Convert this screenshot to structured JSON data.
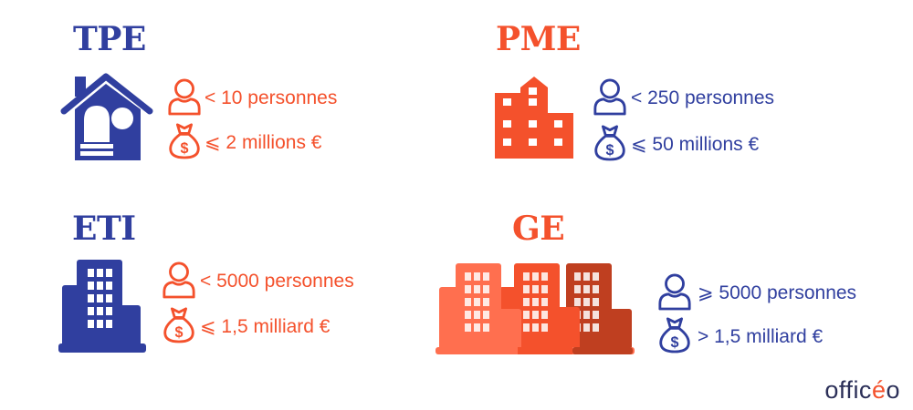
{
  "colors": {
    "blue": "#303f9f",
    "orange": "#f4512c",
    "dark_orange": "#bf3f20",
    "light_orange": "#ff6f4f"
  },
  "tpe": {
    "title": "TPE",
    "employees": "< 10 personnes",
    "revenue": "⩽ 2 millions €",
    "icon": "house-icon"
  },
  "pme": {
    "title": "PME",
    "employees": "< 250 personnes",
    "revenue": "⩽ 50 millions €",
    "icon": "office-building-icon"
  },
  "eti": {
    "title": "ETI",
    "employees": "< 5000 personnes",
    "revenue": "⩽ 1,5 milliard €",
    "icon": "tower-building-icon"
  },
  "ge": {
    "title": "GE",
    "employees": "⩾ 5000 personnes",
    "revenue": "> 1,5 milliard €",
    "icon": "skyline-buildings-icon"
  },
  "logo": {
    "text_before": "offic",
    "accent": "é",
    "text_after": "o"
  }
}
